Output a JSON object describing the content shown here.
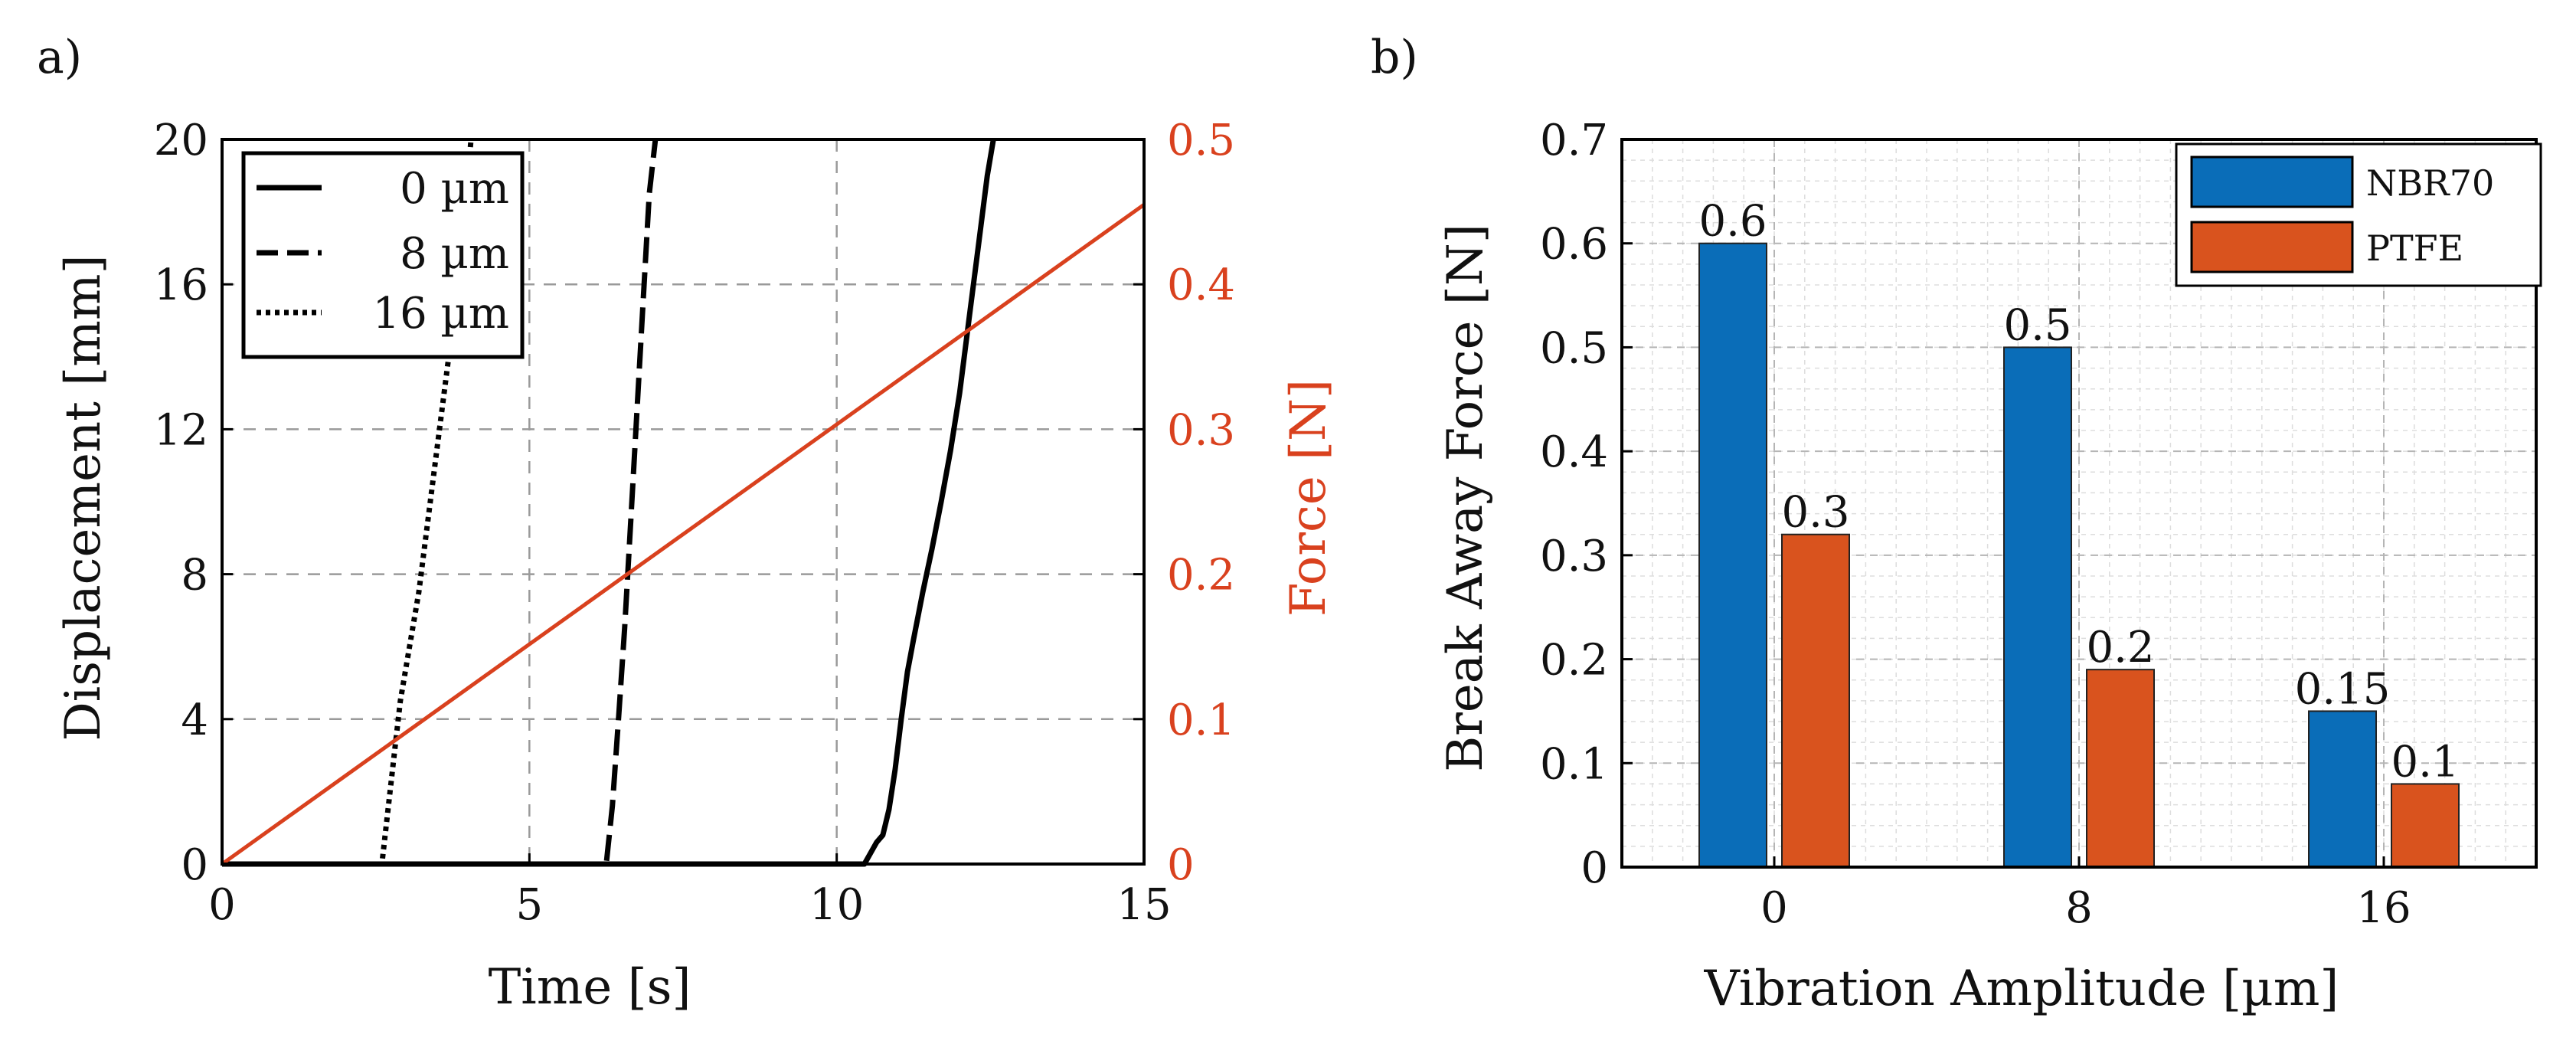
{
  "chart_data": [
    {
      "type": "line",
      "panel_label": "a)",
      "xlabel": "Time [s]",
      "ylabel": "Displacement [mm]",
      "y2label": "Force [N]",
      "xlim": [
        0,
        15
      ],
      "ylim": [
        0,
        20
      ],
      "y2lim": [
        0,
        0.5
      ],
      "xticks": [
        0,
        5,
        10,
        15
      ],
      "yticks": [
        0,
        4,
        8,
        12,
        16,
        20
      ],
      "y2ticks": [
        0,
        0.1,
        0.2,
        0.3,
        0.4,
        0.5
      ],
      "grid": true,
      "legend_position": "top-left",
      "series": [
        {
          "name": "0 µm",
          "axis": "left",
          "style": "solid",
          "color": "#000000",
          "x": [
            0,
            10.45,
            10.55,
            10.65,
            10.75,
            10.85,
            10.95,
            11.05,
            11.15,
            11.25,
            11.4,
            11.55,
            11.7,
            11.85,
            12.0,
            12.15,
            12.3,
            12.45,
            12.55
          ],
          "y": [
            0,
            0,
            0.3,
            0.6,
            0.8,
            1.5,
            2.6,
            4.0,
            5.3,
            6.2,
            7.5,
            8.7,
            10.0,
            11.4,
            13.0,
            15.0,
            17.0,
            19.0,
            20.0
          ]
        },
        {
          "name": "8 µm",
          "axis": "left",
          "style": "dashed",
          "color": "#000000",
          "x": [
            0,
            6.25,
            6.35,
            6.45,
            6.55,
            6.65,
            6.75,
            6.85,
            6.95,
            7.05
          ],
          "y": [
            0,
            0,
            1.6,
            4.0,
            6.5,
            9.5,
            12.5,
            15.5,
            18.5,
            20.0
          ]
        },
        {
          "name": "16 µm",
          "axis": "left",
          "style": "dotted",
          "color": "#000000",
          "x": [
            0,
            2.6,
            2.7,
            2.8,
            2.9,
            3.05,
            3.2,
            3.35,
            3.5,
            3.65,
            3.8,
            3.95,
            4.05
          ],
          "y": [
            0,
            0,
            1.5,
            3.0,
            4.5,
            6.0,
            7.5,
            9.5,
            11.5,
            13.5,
            15.5,
            18.0,
            20.0
          ]
        },
        {
          "name": "Force",
          "axis": "right",
          "style": "solid",
          "color": "#d9411e",
          "x": [
            0,
            15
          ],
          "y": [
            0,
            0.455
          ]
        }
      ]
    },
    {
      "type": "bar",
      "panel_label": "b)",
      "xlabel": "Vibration Amplitude [µm]",
      "ylabel": "Break Away Force [N]",
      "categories": [
        "0",
        "8",
        "16"
      ],
      "ylim": [
        0,
        0.7
      ],
      "yticks": [
        0,
        0.1,
        0.2,
        0.3,
        0.4,
        0.5,
        0.6,
        0.7
      ],
      "yticklabels": [
        "0",
        "0.1",
        "0.2",
        "0.3",
        "0.4",
        "0.5",
        "0.6",
        "0.7"
      ],
      "grid": true,
      "legend_position": "top-right",
      "series": [
        {
          "name": "NBR70",
          "color": "#0a6db8",
          "values": [
            0.6,
            0.5,
            0.15
          ],
          "labels": [
            "0.6",
            "0.5",
            "0.15"
          ]
        },
        {
          "name": "PTFE",
          "color": "#d9531e",
          "values": [
            0.32,
            0.19,
            0.08
          ],
          "labels": [
            "0.3",
            "0.2",
            "0.1"
          ]
        }
      ]
    }
  ]
}
